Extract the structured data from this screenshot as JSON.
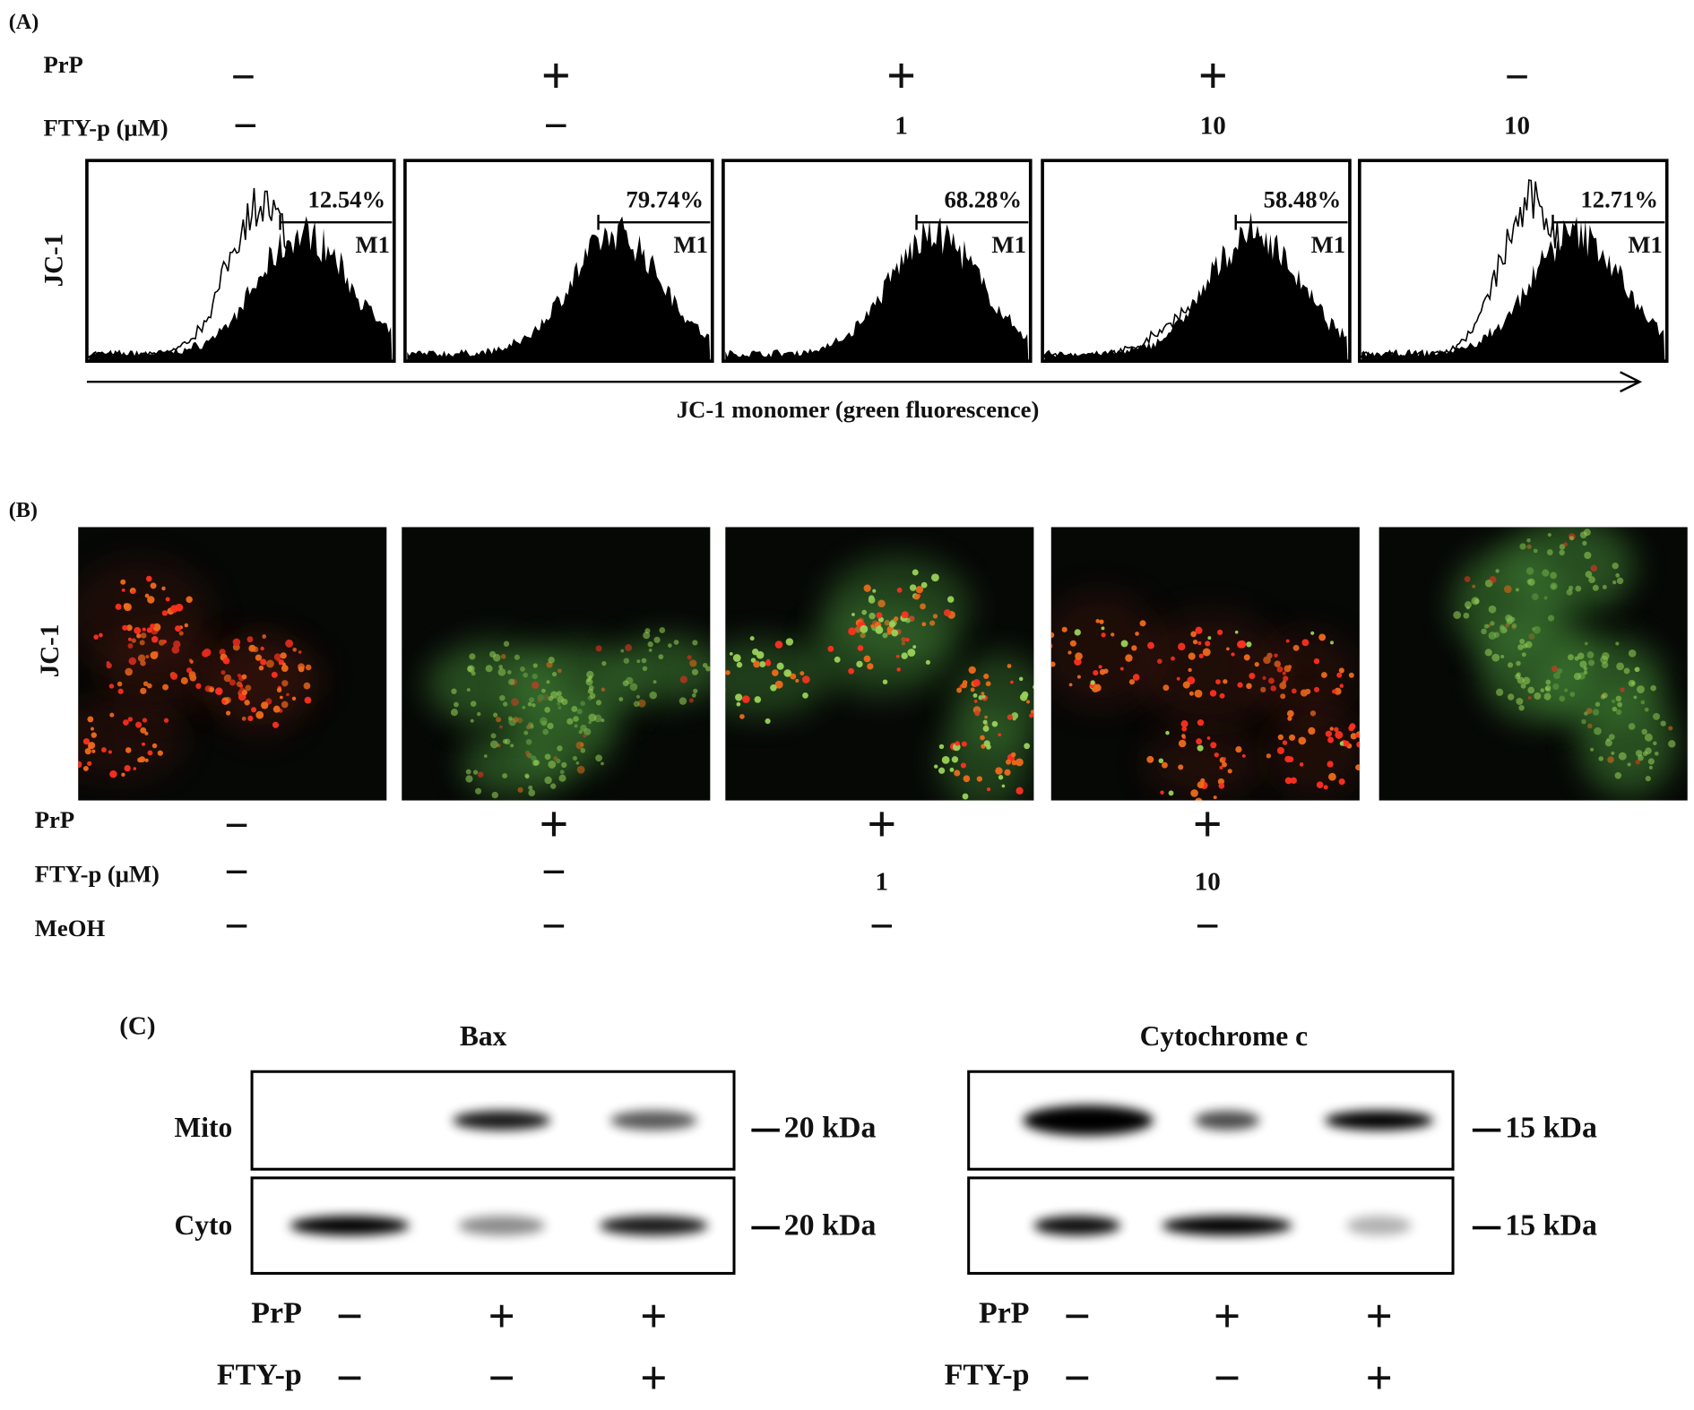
{
  "panel_a": {
    "label": "(A)",
    "prp_label": "PrP",
    "fty_label": "FTY-p (μM)",
    "prp": [
      "−",
      "+",
      "+",
      "+",
      "−"
    ],
    "fty": [
      "−",
      "−",
      "1",
      "10",
      "10"
    ],
    "y_label": "JC-1",
    "percents": [
      "12.54%",
      "79.74%",
      "68.28%",
      "58.48%",
      "12.71%"
    ],
    "gate": "M1",
    "x_label": "JC-1 monomer (green fluorescence)"
  },
  "panel_b": {
    "label": "(B)",
    "y_label": "JC-1",
    "prp_label": "PrP",
    "fty_label": "FTY-p (μM)",
    "meoh_label": "MeOH",
    "prp": [
      "−",
      "+",
      "+",
      "+"
    ],
    "fty": [
      "−",
      "−",
      "1",
      "10"
    ],
    "meoh": [
      "−",
      "−",
      "−",
      "−"
    ]
  },
  "panel_c": {
    "label": "(C)",
    "blots": [
      {
        "title": "Bax",
        "rows": [
          "Mito",
          "Cyto"
        ],
        "markers": [
          "20 kDa",
          "20 kDa"
        ],
        "prp_label": "PrP",
        "fty_label": "FTY-p",
        "prp": [
          "−",
          "+",
          "+"
        ],
        "fty": [
          "−",
          "−",
          "+"
        ]
      },
      {
        "title": "Cytochrome c",
        "rows": [
          "Mito",
          "Cyto"
        ],
        "markers": [
          "15 kDa",
          "15 kDa"
        ],
        "prp_label": "PrP",
        "fty_label": "FTY-p",
        "prp": [
          "−",
          "+",
          "+"
        ],
        "fty": [
          "−",
          "−",
          "+"
        ]
      }
    ]
  }
}
